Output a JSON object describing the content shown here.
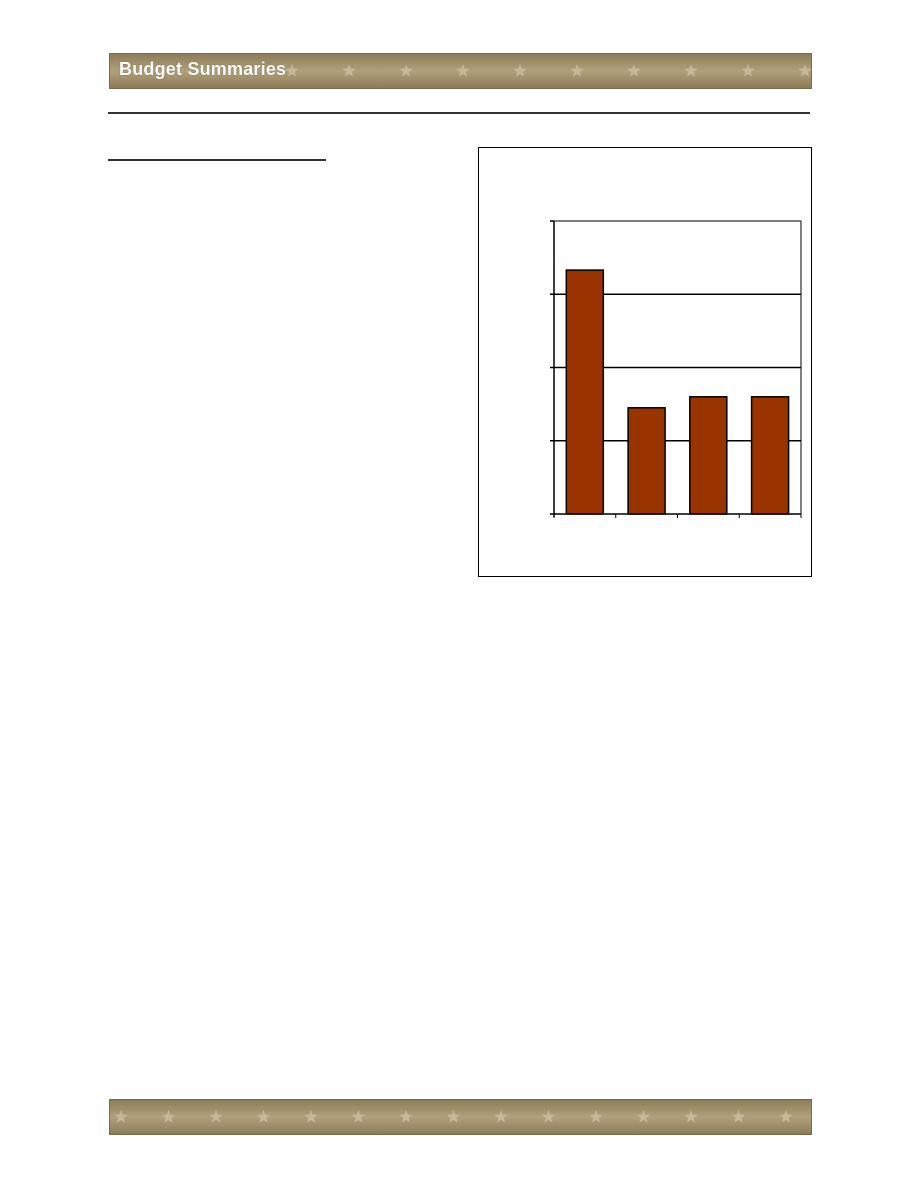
{
  "header": {
    "title": "Budget Summaries"
  },
  "colors": {
    "banner": "#a2916c",
    "bar": "#993300",
    "star": "#c9bd9f"
  },
  "chart_data": {
    "type": "bar",
    "title": "",
    "xlabel": "",
    "ylabel": "",
    "categories": [
      "",
      "",
      "",
      ""
    ],
    "values": [
      3.33,
      1.45,
      1.6,
      1.6
    ],
    "ylim": [
      0,
      4
    ],
    "yticks": [
      0,
      1,
      2,
      3,
      4
    ],
    "grid": true,
    "legend": "none"
  }
}
